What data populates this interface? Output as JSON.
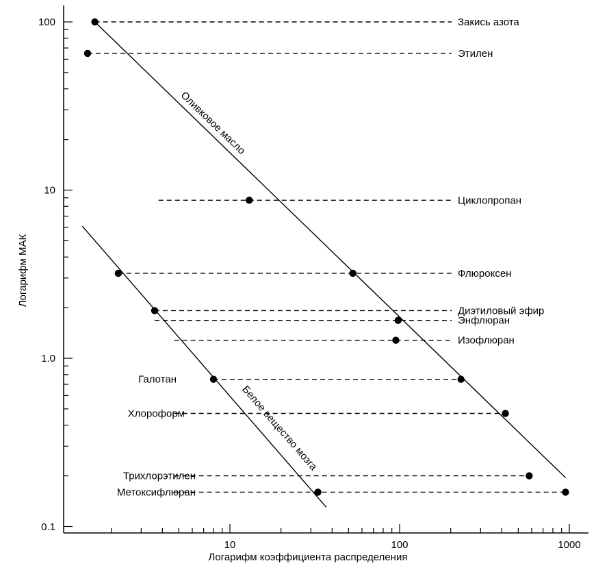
{
  "chart_data": {
    "type": "scatter",
    "x_scale": "log",
    "y_scale": "log",
    "xlabel": "Логарифм коэффициента распределения",
    "ylabel": "Логарифм МАК",
    "xlim": [
      1.25,
      1000
    ],
    "ylim": [
      0.1,
      100
    ],
    "x_ticks": [
      {
        "value": 10,
        "label": "10"
      },
      {
        "value": 100,
        "label": "100"
      },
      {
        "value": 1000,
        "label": "1000"
      }
    ],
    "y_ticks": [
      {
        "value": 0.1,
        "label": "0.1"
      },
      {
        "value": 1,
        "label": "1.0"
      },
      {
        "value": 10,
        "label": "10"
      },
      {
        "value": 100,
        "label": "100"
      }
    ],
    "agents": [
      {
        "name": "Закись азота",
        "mac": 100,
        "points_x": [
          1.6
        ],
        "dash_from_x": 1.6,
        "label_pos": "right"
      },
      {
        "name": "Этилен",
        "mac": 65,
        "points_x": [
          1.45
        ],
        "dash_from_x": 1.45,
        "label_pos": "right"
      },
      {
        "name": "Циклопропан",
        "mac": 8.7,
        "points_x": [
          13
        ],
        "dash_from_x": 3.8,
        "label_pos": "right"
      },
      {
        "name": "Флюроксен",
        "mac": 3.2,
        "points_x": [
          2.2,
          53
        ],
        "dash_from_x": 2.2,
        "label_pos": "right"
      },
      {
        "name": "Диэтиловый эфир",
        "mac": 1.92,
        "points_x": [
          3.6
        ],
        "dash_from_x": 3.6,
        "label_pos": "right"
      },
      {
        "name": "Энфлюран",
        "mac": 1.68,
        "points_x": [
          98
        ],
        "dash_from_x": 3.6,
        "label_pos": "right"
      },
      {
        "name": "Изофлюран",
        "mac": 1.28,
        "points_x": [
          95
        ],
        "dash_from_x": 4.7,
        "label_pos": "right"
      },
      {
        "name": "Галотан",
        "mac": 0.75,
        "points_x": [
          8,
          230
        ],
        "dash_from_x": 8,
        "label_pos": "left"
      },
      {
        "name": "Хлороформ",
        "mac": 0.47,
        "points_x": [
          420
        ],
        "dash_from_x": 4.7,
        "label_pos": "left"
      },
      {
        "name": "Трихлорэтилен",
        "mac": 0.2,
        "points_x": [
          580
        ],
        "dash_from_x": 4.7,
        "label_pos": "left"
      },
      {
        "name": "Метоксифлюран",
        "mac": 0.16,
        "points_x": [
          33,
          950
        ],
        "dash_from_x": 4.7,
        "label_pos": "left"
      }
    ],
    "reference_lines": [
      {
        "name": "Оливковое масло",
        "from": [
          1.6,
          100
        ],
        "to": [
          950,
          0.195
        ]
      },
      {
        "name": "Белое вещество мозга",
        "from": [
          1.35,
          6.1
        ],
        "to": [
          37,
          0.13
        ]
      }
    ],
    "grid": false
  }
}
